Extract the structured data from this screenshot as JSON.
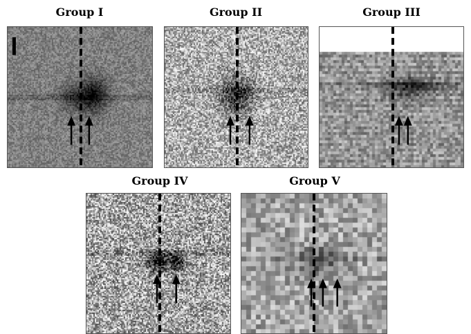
{
  "panels": [
    {
      "title": "Group I",
      "arrow_count": 2,
      "has_scale_bar": true,
      "has_blank_top": false,
      "tone": "dark"
    },
    {
      "title": "Group II",
      "arrow_count": 2,
      "has_scale_bar": false,
      "has_blank_top": false,
      "tone": "light"
    },
    {
      "title": "Group III",
      "arrow_count": 2,
      "has_scale_bar": false,
      "has_blank_top": true,
      "tone": "mid"
    },
    {
      "title": "Group IV",
      "arrow_count": 2,
      "has_scale_bar": false,
      "has_blank_top": false,
      "tone": "light"
    },
    {
      "title": "Group V",
      "arrow_count": 3,
      "has_scale_bar": false,
      "has_blank_top": false,
      "tone": "blocky"
    }
  ],
  "colors": {
    "dashed_line": "#000000",
    "arrow": "#000000",
    "blob": "#1a1a1a"
  }
}
